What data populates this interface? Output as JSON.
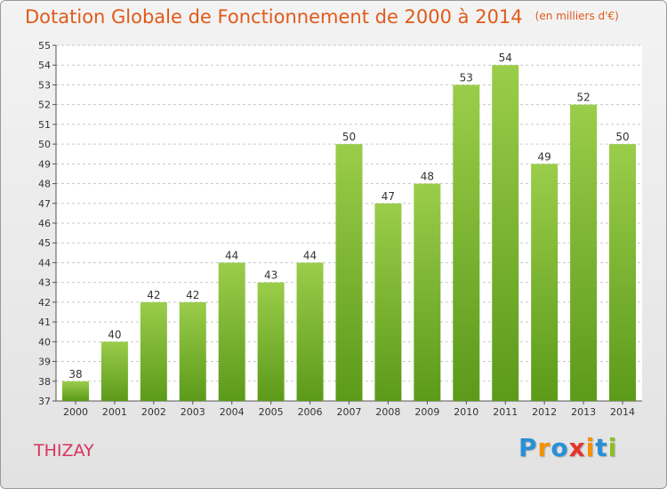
{
  "title": "Dotation Globale de Fonctionnement de 2000 à 2014",
  "subtitle": "(en milliers d'€)",
  "commune": "THIZAY",
  "brand": {
    "text": "Proxiti",
    "letters": [
      {
        "ch": "P",
        "color": "#2a8fd6"
      },
      {
        "ch": "r",
        "color": "#f39200"
      },
      {
        "ch": "o",
        "color": "#2a8fd6"
      },
      {
        "ch": "x",
        "color": "#e5352b"
      },
      {
        "ch": "i",
        "color": "#f39200"
      },
      {
        "ch": "t",
        "color": "#2a8fd6"
      },
      {
        "ch": "i",
        "color": "#8cbf26"
      }
    ]
  },
  "colors": {
    "bar_top": "#9acd4a",
    "bar_bottom": "#5c9a1a",
    "plot_bg": "#ffffff",
    "grid": "#c8c8c8",
    "axis_text": "#333333",
    "title": "#e05a1a",
    "commune": "#d8325f"
  },
  "chart_data": {
    "type": "bar",
    "categories": [
      "2000",
      "2001",
      "2002",
      "2003",
      "2004",
      "2005",
      "2006",
      "2007",
      "2008",
      "2009",
      "2010",
      "2011",
      "2012",
      "2013",
      "2014"
    ],
    "values": [
      38,
      40,
      42,
      42,
      44,
      43,
      44,
      50,
      47,
      48,
      53,
      54,
      49,
      52,
      50
    ],
    "ylim": [
      37,
      55
    ],
    "yticks": [
      37,
      38,
      39,
      40,
      41,
      42,
      43,
      44,
      45,
      46,
      47,
      48,
      49,
      50,
      51,
      52,
      53,
      54,
      55
    ],
    "grid": true,
    "grid_style": "dashed-horizontal",
    "data_labels": true,
    "legend": "none"
  }
}
